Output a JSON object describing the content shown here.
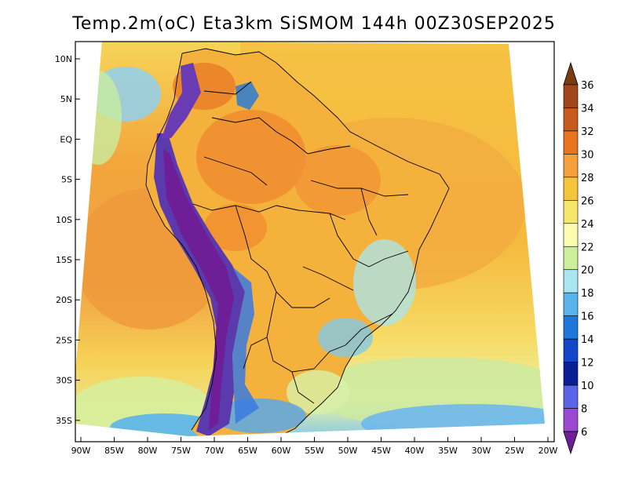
{
  "title": "Temp.2m(oC) Eta3km SiSMOM 144h 00Z30SEP2025",
  "lat_labels": [
    "10N",
    "5N",
    "EQ",
    "5S",
    "10S",
    "15S",
    "20S",
    "25S",
    "30S",
    "35S"
  ],
  "lon_labels": [
    "90W",
    "85W",
    "80W",
    "75W",
    "70W",
    "65W",
    "60W",
    "55W",
    "50W",
    "45W",
    "40W",
    "35W",
    "30W",
    "25W",
    "20W"
  ],
  "colorbar": {
    "labels": [
      "36",
      "34",
      "32",
      "30",
      "28",
      "26",
      "24",
      "22",
      "20",
      "18",
      "16",
      "14",
      "12",
      "10",
      "8",
      "6"
    ],
    "colors": [
      "#7a3b12",
      "#a0461a",
      "#c85a1e",
      "#e8741e",
      "#f4a03c",
      "#f6c43a",
      "#f6e66a",
      "#fcfcb0",
      "#cdee9a",
      "#a9e6f0",
      "#5ab4ec",
      "#1e78dc",
      "#1446c8",
      "#0a1e96",
      "#5a64e6",
      "#9a4ad2",
      "#6e1e96"
    ]
  },
  "palette": {
    "ocean_warm": "#f0a040",
    "ocean_mid": "#f6c850",
    "ocean_cool": "#f8e070",
    "land_hot": "#f08c30",
    "andes_cold": "#4a2a96",
    "andes_mid": "#6a3cb4",
    "cold_south": "#3a7ae0",
    "cool_green": "#c8eca0",
    "coast": "#000000"
  }
}
